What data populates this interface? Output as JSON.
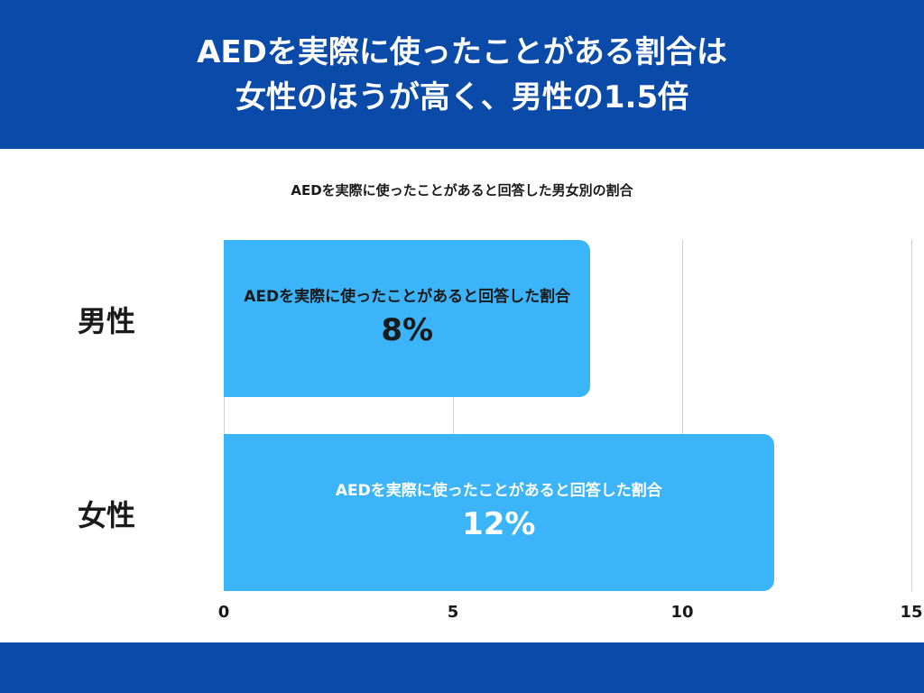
{
  "header": {
    "title_lines": [
      "AEDを実際に使ったことがある割合は",
      "女性のほうが高く、男性の1.5倍"
    ]
  },
  "chart_data": {
    "type": "bar",
    "orientation": "horizontal",
    "title": "AEDを実際に使ったことがあると回答した男女別の割合",
    "categories": [
      "男性",
      "女性"
    ],
    "series": [
      {
        "name": "AEDを実際に使ったことがあると回答した割合",
        "color": "#3bb4fa",
        "values": [
          8,
          12
        ],
        "value_labels": [
          "8%",
          "12%"
        ]
      }
    ],
    "xlim": [
      0,
      15
    ],
    "xticks": [
      0,
      5,
      10,
      15
    ],
    "grid": true
  }
}
